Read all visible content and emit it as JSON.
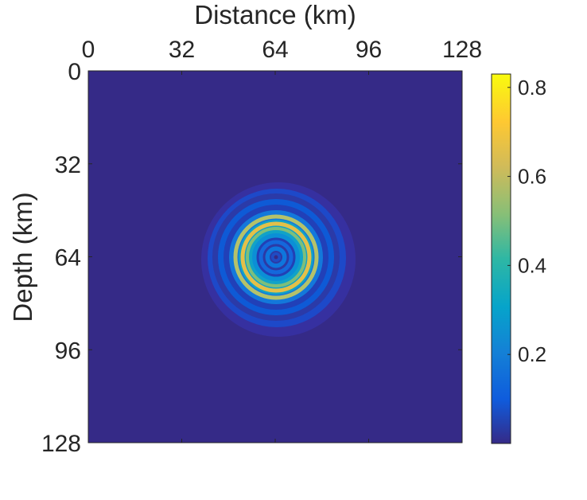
{
  "chart_data": {
    "type": "heatmap",
    "title": "",
    "xlabel": "Distance (km)",
    "ylabel": "Depth (km)",
    "xlim": [
      0,
      128
    ],
    "ylim": [
      0,
      128
    ],
    "x_axis_position": "top",
    "y_axis_direction": "reversed",
    "x_ticks": [
      "0",
      "32",
      "64",
      "96",
      "128"
    ],
    "y_ticks": [
      "0",
      "32",
      "64",
      "96",
      "128"
    ],
    "x_tick_values": [
      0,
      32,
      64,
      96,
      128
    ],
    "y_tick_values": [
      0,
      32,
      64,
      96,
      128
    ],
    "grid": false,
    "colormap": "parula",
    "colormap_stops": [
      "#352a87",
      "#0f5cdd",
      "#1481d6",
      "#06a4ca",
      "#2eb7a4",
      "#87bf77",
      "#d1bb59",
      "#fec832",
      "#f9fb0e"
    ],
    "background_color": "#352a87",
    "colorbar": {
      "position": "right",
      "range": [
        0,
        0.83
      ],
      "ticks": [
        "0.2",
        "0.4",
        "0.6",
        "0.8"
      ],
      "tick_values": [
        0.2,
        0.4,
        0.6,
        0.8
      ]
    },
    "feature": {
      "description_values": "concentric ring wavefield",
      "center": [
        64,
        64
      ],
      "max_value": 0.82,
      "outer_radius": 26,
      "bright_ring_radius_range": [
        8,
        14
      ]
    }
  }
}
